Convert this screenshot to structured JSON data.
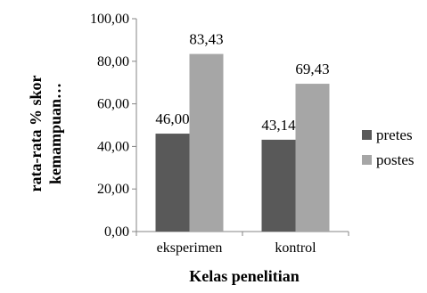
{
  "chart_data": {
    "type": "bar",
    "categories": [
      "eksperimen",
      "kontrol"
    ],
    "series": [
      {
        "name": "pretes",
        "values": [
          46.0,
          43.14
        ],
        "labels": [
          "46,00",
          "43,14"
        ],
        "color": "#595959"
      },
      {
        "name": "postes",
        "values": [
          83.43,
          69.43
        ],
        "labels": [
          "83,43",
          "69,43"
        ],
        "color": "#a6a6a6"
      }
    ],
    "xlabel": "Kelas penelitian",
    "ylabel_lines": [
      "rata-rata % skor",
      "kemampuan…"
    ],
    "ylim": [
      0,
      100
    ],
    "yticks": [
      0,
      20,
      40,
      60,
      80,
      100
    ],
    "ytick_labels": [
      "0,00",
      "20,00",
      "40,00",
      "60,00",
      "80,00",
      "100,00"
    ],
    "grid": false,
    "legend_position": "right"
  }
}
